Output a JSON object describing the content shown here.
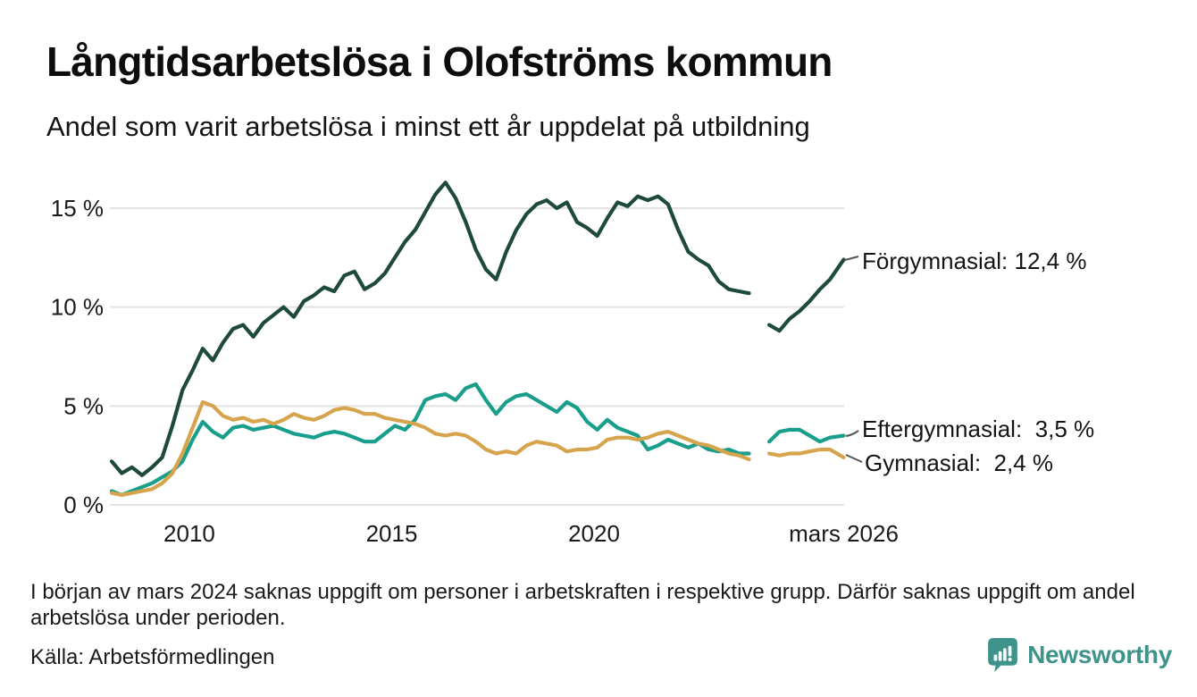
{
  "header": {
    "title": "Långtidsarbetslösa i Olofströms kommun",
    "subtitle": "Andel som varit arbetslösa i minst ett år uppdelat på utbildning"
  },
  "chart_data": {
    "type": "line",
    "title": "Långtidsarbetslösa i Olofströms kommun",
    "subtitle": "Andel som varit arbetslösa i minst ett år uppdelat på utbildning",
    "xlabel": "",
    "ylabel": "",
    "unit": "%",
    "decimal_style": "comma",
    "resolution": "quarterly estimates read from graph",
    "grid": "horizontal",
    "legend_position": "right-of-line-ends",
    "xlim": [
      2008.08,
      2026.17
    ],
    "ylim": [
      0,
      16.8
    ],
    "missing_data_gap": "early 2024 (no values plotted)",
    "yticks": [
      "15 %",
      "10 %",
      "5 %",
      "0 %"
    ],
    "ytick_values": [
      15,
      10,
      5,
      0
    ],
    "xticks": [
      {
        "label": "2010",
        "x": 2010.0
      },
      {
        "label": "2015",
        "x": 2015.0
      },
      {
        "label": "2020",
        "x": 2020.0
      },
      {
        "label": "mars 2026",
        "x": 2026.17
      }
    ],
    "x": [
      2008.08,
      2008.33,
      2008.58,
      2008.83,
      2009.08,
      2009.33,
      2009.58,
      2009.83,
      2010.08,
      2010.33,
      2010.58,
      2010.83,
      2011.08,
      2011.33,
      2011.58,
      2011.83,
      2012.08,
      2012.33,
      2012.58,
      2012.83,
      2013.08,
      2013.33,
      2013.58,
      2013.83,
      2014.08,
      2014.33,
      2014.58,
      2014.83,
      2015.08,
      2015.33,
      2015.58,
      2015.83,
      2016.08,
      2016.33,
      2016.58,
      2016.83,
      2017.08,
      2017.33,
      2017.58,
      2017.83,
      2018.08,
      2018.33,
      2018.58,
      2018.83,
      2019.08,
      2019.33,
      2019.58,
      2019.83,
      2020.08,
      2020.33,
      2020.58,
      2020.83,
      2021.08,
      2021.33,
      2021.58,
      2021.83,
      2022.08,
      2022.33,
      2022.58,
      2022.83,
      2023.08,
      2023.33,
      2023.58,
      2023.83,
      2024.08,
      2024.33,
      2024.58,
      2024.83,
      2025.08,
      2025.33,
      2025.58,
      2025.83,
      2026.17
    ],
    "series": [
      {
        "name": "Eftergymnasial",
        "label": "Eftergymnasial:  3,5 %",
        "latest_value": "3,5 %",
        "color": "#189E8A",
        "values": [
          0.7,
          0.5,
          0.7,
          0.9,
          1.1,
          1.4,
          1.7,
          2.2,
          3.3,
          4.2,
          3.7,
          3.4,
          3.9,
          4.0,
          3.8,
          3.9,
          4.0,
          3.8,
          3.6,
          3.5,
          3.4,
          3.6,
          3.7,
          3.6,
          3.4,
          3.2,
          3.2,
          3.6,
          4.0,
          3.8,
          4.3,
          5.3,
          5.5,
          5.6,
          5.3,
          5.9,
          6.1,
          5.3,
          4.6,
          5.2,
          5.5,
          5.6,
          5.3,
          5.0,
          4.7,
          5.2,
          4.9,
          4.2,
          3.8,
          4.3,
          3.9,
          3.7,
          3.5,
          2.8,
          3.0,
          3.3,
          3.1,
          2.9,
          3.1,
          2.8,
          2.7,
          2.8,
          2.6,
          2.6,
          null,
          3.2,
          3.7,
          3.8,
          3.8,
          3.5,
          3.2,
          3.4,
          3.5
        ]
      },
      {
        "name": "Gymnasial",
        "label": "Gymnasial:  2,4 %",
        "latest_value": "2,4 %",
        "color": "#D6A44C",
        "values": [
          0.6,
          0.5,
          0.6,
          0.7,
          0.8,
          1.1,
          1.6,
          2.6,
          3.9,
          5.2,
          5.0,
          4.5,
          4.3,
          4.4,
          4.2,
          4.3,
          4.1,
          4.3,
          4.6,
          4.4,
          4.3,
          4.5,
          4.8,
          4.9,
          4.8,
          4.6,
          4.6,
          4.4,
          4.3,
          4.2,
          4.1,
          3.9,
          3.6,
          3.5,
          3.6,
          3.5,
          3.2,
          2.8,
          2.6,
          2.7,
          2.6,
          3.0,
          3.2,
          3.1,
          3.0,
          2.7,
          2.8,
          2.8,
          2.9,
          3.3,
          3.4,
          3.4,
          3.3,
          3.4,
          3.6,
          3.7,
          3.5,
          3.3,
          3.1,
          3.0,
          2.8,
          2.6,
          2.5,
          2.3,
          null,
          2.6,
          2.5,
          2.6,
          2.6,
          2.7,
          2.8,
          2.8,
          2.4
        ]
      },
      {
        "name": "Förgymnasial",
        "label": "Förgymnasial: 12,4 %",
        "latest_value": "12,4 %",
        "color": "#1E4A3E",
        "values": [
          2.2,
          1.6,
          1.9,
          1.5,
          1.9,
          2.4,
          4.0,
          5.8,
          6.8,
          7.9,
          7.3,
          8.2,
          8.9,
          9.1,
          8.5,
          9.2,
          9.6,
          10.0,
          9.5,
          10.3,
          10.6,
          11.0,
          10.8,
          11.6,
          11.8,
          10.9,
          11.2,
          11.7,
          12.5,
          13.3,
          13.9,
          14.8,
          15.7,
          16.3,
          15.5,
          14.3,
          12.9,
          11.9,
          11.4,
          12.8,
          13.9,
          14.7,
          15.2,
          15.4,
          15.0,
          15.3,
          14.3,
          14.0,
          13.6,
          14.5,
          15.3,
          15.1,
          15.6,
          15.4,
          15.6,
          15.2,
          13.9,
          12.8,
          12.4,
          12.1,
          11.3,
          10.9,
          10.8,
          10.7,
          null,
          9.1,
          8.8,
          9.4,
          9.8,
          10.3,
          10.9,
          11.4,
          12.4
        ]
      }
    ]
  },
  "footer": {
    "note": "I början av mars 2024 saknas uppgift om personer i arbetskraften i respektive grupp. Därför saknas uppgift om andel arbetslösa under perioden.",
    "source": "Källa: Arbetsförmedlingen",
    "brand": "Newsworthy",
    "brand_color": "#3E938B"
  }
}
